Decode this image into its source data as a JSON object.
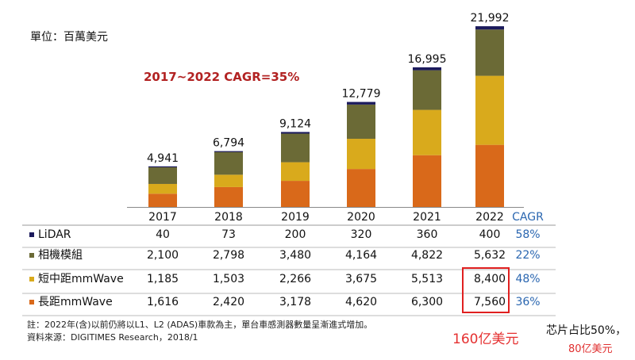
{
  "unit_label": "單位：百萬美元",
  "cagr_title": "2017~2022 CAGR=35%",
  "footnotes": [
    "註：2022年(含)以前仍將以L1、L2 (ADAS)車款為主，單台車感測器數量呈漸進式增加。",
    "資料來源：DIGITIMES Research，2018/1"
  ],
  "annotations": {
    "sum_note": "160亿美元",
    "chip_note": "芯片占比50%，",
    "chip_value": "80亿美元"
  },
  "chart_data": {
    "type": "bar",
    "stacked": true,
    "categories": [
      "2017",
      "2018",
      "2019",
      "2020",
      "2021",
      "2022"
    ],
    "totals": [
      "4,941",
      "6,794",
      "9,124",
      "12,779",
      "16,995",
      "21,992"
    ],
    "totals_values": [
      4941,
      6794,
      9124,
      12779,
      16995,
      21992
    ],
    "cagr_header": "CAGR",
    "series": [
      {
        "name": "長距mmWave",
        "color": "#d9691a",
        "values": [
          1616,
          2420,
          3178,
          4620,
          6300,
          7560
        ],
        "labels": [
          "1,616",
          "2,420",
          "3,178",
          "4,620",
          "6,300",
          "7,560"
        ],
        "cagr": "36%"
      },
      {
        "name": "短中距mmWave",
        "color": "#d9aa1c",
        "values": [
          1185,
          1503,
          2266,
          3675,
          5513,
          8400
        ],
        "labels": [
          "1,185",
          "1,503",
          "2,266",
          "3,675",
          "5,513",
          "8,400"
        ],
        "cagr": "48%"
      },
      {
        "name": "相機模組",
        "color": "#6b6a36",
        "values": [
          2100,
          2798,
          3480,
          4164,
          4822,
          5632
        ],
        "labels": [
          "2,100",
          "2,798",
          "3,480",
          "4,164",
          "4,822",
          "5,632"
        ],
        "cagr": "22%"
      },
      {
        "name": "LiDAR",
        "color": "#1b1a5c",
        "values": [
          40,
          73,
          200,
          320,
          360,
          400
        ],
        "labels": [
          "40",
          "73",
          "200",
          "320",
          "360",
          "400"
        ],
        "cagr": "58%"
      }
    ],
    "table_row_order": [
      "LiDAR",
      "相機模組",
      "短中距mmWave",
      "長距mmWave"
    ],
    "cagr_color": "#2a66b0",
    "ylim": [
      0,
      22000
    ]
  }
}
